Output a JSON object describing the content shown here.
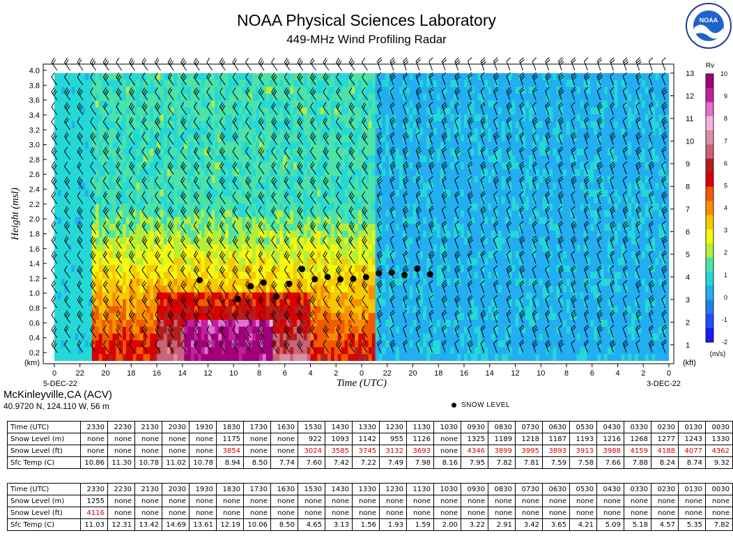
{
  "header": {
    "title": "NOAA Physical Sciences Laboratory",
    "subtitle": "449-MHz Wind Profiling Radar",
    "seal_text": "NOAA"
  },
  "station": {
    "name": "McKinleyville,CA (ACV)",
    "coords": "40.9720 N, 124.110 W, 56 m"
  },
  "snow_legend": "SNOW LEVEL",
  "colors": {
    "background": "#ffffff",
    "snow_red": "#d40000",
    "colorbar": [
      "#1a1aff",
      "#1f4fff",
      "#2080f0",
      "#22aef0",
      "#25d8d8",
      "#4de3a8",
      "#b4ee3c",
      "#f7f70c",
      "#f8c800",
      "#f89000",
      "#f05a00",
      "#d80000",
      "#b41e1e",
      "#c86478",
      "#dc8caa",
      "#f0b4dc",
      "#e070d0",
      "#c020a0",
      "#a00078"
    ]
  },
  "chart_data": {
    "type": "heatmap",
    "title": "449-MHz Wind Profiling Radar",
    "xlabel": "Time (UTC)",
    "ylabel_left": "Height (msl)",
    "unit_left": "(km)",
    "unit_right": "(kft)",
    "x_tick_labels": [
      "0",
      "22",
      "20",
      "18",
      "16",
      "14",
      "12",
      "10",
      "8",
      "6",
      "4",
      "2",
      "0",
      "22",
      "20",
      "18",
      "16",
      "14",
      "12",
      "10",
      "8",
      "6",
      "4",
      "2",
      "0"
    ],
    "date_left": "5-DEC-22",
    "date_right": "3-DEC-22",
    "y_left_ticks": [
      "4.0",
      "3.8",
      "3.6",
      "3.4",
      "3.2",
      "3.0",
      "2.8",
      "2.6",
      "2.4",
      "2.2",
      "2.0",
      "1.8",
      "1.6",
      "1.4",
      "1.2",
      "1.0",
      "0.8",
      "0.6",
      "0.4",
      "0.2"
    ],
    "y_left_values": [
      4.0,
      3.8,
      3.6,
      3.4,
      3.2,
      3.0,
      2.8,
      2.6,
      2.4,
      2.2,
      2.0,
      1.8,
      1.6,
      1.4,
      1.2,
      1.0,
      0.8,
      0.6,
      0.4,
      0.2
    ],
    "y_right_ticks": [
      "13",
      "12",
      "11",
      "10",
      "9",
      "8",
      "7",
      "6",
      "5",
      "4",
      "3",
      "2",
      "1"
    ],
    "y_right_values": [
      13,
      12,
      11,
      10,
      9,
      8,
      7,
      6,
      5,
      4,
      3,
      2,
      1
    ],
    "ylim_km": [
      0.1,
      4.0
    ],
    "colorbar_title": "Rv",
    "colorbar_unit": "(m/s)",
    "colorbar_labels": [
      "10",
      "9",
      "8",
      "7",
      "6",
      "5",
      "4",
      "3",
      "2",
      "1",
      "0",
      "-1",
      "-2"
    ],
    "colorbar_range": [
      -2,
      10
    ],
    "snow_level_hours_back": [
      18.5,
      15.5,
      14.5,
      13.5,
      12.5,
      11.5,
      10.5,
      9.5,
      8.5,
      7.5,
      6.5,
      5.5,
      4.5,
      3.5,
      2.5,
      1.5,
      0.5,
      -0.5
    ],
    "snow_level_m": [
      1175,
      922,
      1093,
      1142,
      955,
      1126,
      1325,
      1189,
      1218,
      1187,
      1193,
      1216,
      1268,
      1277,
      1243,
      1330,
      1255,
      null
    ]
  },
  "tables": [
    {
      "rows": [
        {
          "label": "Time (UTC)",
          "values": [
            "2330",
            "2230",
            "2130",
            "2030",
            "1930",
            "1830",
            "1730",
            "1630",
            "1530",
            "1430",
            "1330",
            "1230",
            "1130",
            "1030",
            "0930",
            "0830",
            "0730",
            "0630",
            "0530",
            "0430",
            "0330",
            "0230",
            "0130",
            "0030"
          ],
          "red": false
        },
        {
          "label": "Snow Level (m)",
          "values": [
            "none",
            "none",
            "none",
            "none",
            "none",
            "1175",
            "none",
            "none",
            "922",
            "1093",
            "1142",
            "955",
            "1126",
            "none",
            "1325",
            "1189",
            "1218",
            "1187",
            "1193",
            "1216",
            "1268",
            "1277",
            "1243",
            "1330"
          ],
          "red": false
        },
        {
          "label": "Snow Level (ft)",
          "values": [
            "none",
            "none",
            "none",
            "none",
            "none",
            "3854",
            "none",
            "none",
            "3024",
            "3585",
            "3745",
            "3132",
            "3693",
            "none",
            "4346",
            "3899",
            "3995",
            "3893",
            "3913",
            "3988",
            "4159",
            "4188",
            "4077",
            "4362"
          ],
          "red": true
        },
        {
          "label": "Sfc Temp (C)",
          "values": [
            "10.86",
            "11.30",
            "10.78",
            "11.02",
            "10.78",
            "8.94",
            "8.50",
            "7.74",
            "7.60",
            "7.42",
            "7.22",
            "7.49",
            "7.98",
            "8.16",
            "7.95",
            "7.82",
            "7.81",
            "7.59",
            "7.58",
            "7.66",
            "7.88",
            "8.24",
            "8.74",
            "9.32"
          ],
          "red": false
        }
      ]
    },
    {
      "rows": [
        {
          "label": "Time (UTC)",
          "values": [
            "2330",
            "2230",
            "2130",
            "2030",
            "1930",
            "1830",
            "1730",
            "1630",
            "1530",
            "1430",
            "1330",
            "1230",
            "1130",
            "1030",
            "0930",
            "0830",
            "0730",
            "0630",
            "0530",
            "0430",
            "0330",
            "0230",
            "0130",
            "0030"
          ],
          "red": false
        },
        {
          "label": "Snow Level (m)",
          "values": [
            "1255",
            "none",
            "none",
            "none",
            "none",
            "none",
            "none",
            "none",
            "none",
            "none",
            "none",
            "none",
            "none",
            "none",
            "none",
            "none",
            "none",
            "none",
            "none",
            "none",
            "none",
            "none",
            "none",
            "none"
          ],
          "red": false
        },
        {
          "label": "Snow Level (ft)",
          "values": [
            "4116",
            "none",
            "none",
            "none",
            "none",
            "none",
            "none",
            "none",
            "none",
            "none",
            "none",
            "none",
            "none",
            "none",
            "none",
            "none",
            "none",
            "none",
            "none",
            "none",
            "none",
            "none",
            "none",
            "none"
          ],
          "red": true
        },
        {
          "label": "Sfc Temp (C)",
          "values": [
            "11.03",
            "12.31",
            "13.42",
            "14.69",
            "13.61",
            "12.19",
            "10.06",
            "8.50",
            "4.65",
            "3.13",
            "1.56",
            "1.93",
            "1.59",
            "2.00",
            "3.22",
            "2.91",
            "3.42",
            "3.65",
            "4.21",
            "5.09",
            "5.18",
            "4.57",
            "5.35",
            "7.82"
          ],
          "red": false
        }
      ]
    }
  ]
}
